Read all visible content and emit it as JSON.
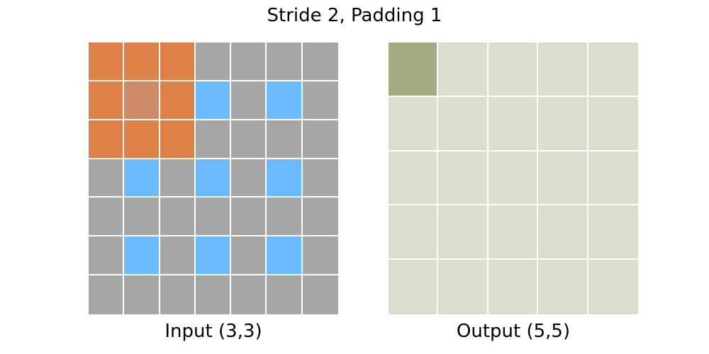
{
  "title": "Stride 2, Padding 1",
  "input": {
    "label": "Input (3,3)",
    "rows": 7,
    "cols": 7,
    "cells": [
      [
        "kernel",
        "kernel",
        "kernel",
        "padding",
        "padding",
        "padding",
        "padding"
      ],
      [
        "kernel",
        "kernel-center",
        "kernel",
        "input",
        "padding",
        "input",
        "padding"
      ],
      [
        "kernel",
        "kernel",
        "kernel",
        "padding",
        "padding",
        "padding",
        "padding"
      ],
      [
        "padding",
        "input",
        "padding",
        "input",
        "padding",
        "input",
        "padding"
      ],
      [
        "padding",
        "padding",
        "padding",
        "padding",
        "padding",
        "padding",
        "padding"
      ],
      [
        "padding",
        "input",
        "padding",
        "input",
        "padding",
        "input",
        "padding"
      ],
      [
        "padding",
        "padding",
        "padding",
        "padding",
        "padding",
        "padding",
        "padding"
      ]
    ]
  },
  "output": {
    "label": "Output (5,5)",
    "rows": 5,
    "cols": 5,
    "active": [
      0,
      0
    ]
  },
  "colors": {
    "padding": "#a6a6a6",
    "input": "#6abaff",
    "kernel": "#dd8148",
    "kernel-center": "#ce8b69",
    "output": "#dbddcd",
    "output-active": "#a4ab82"
  }
}
